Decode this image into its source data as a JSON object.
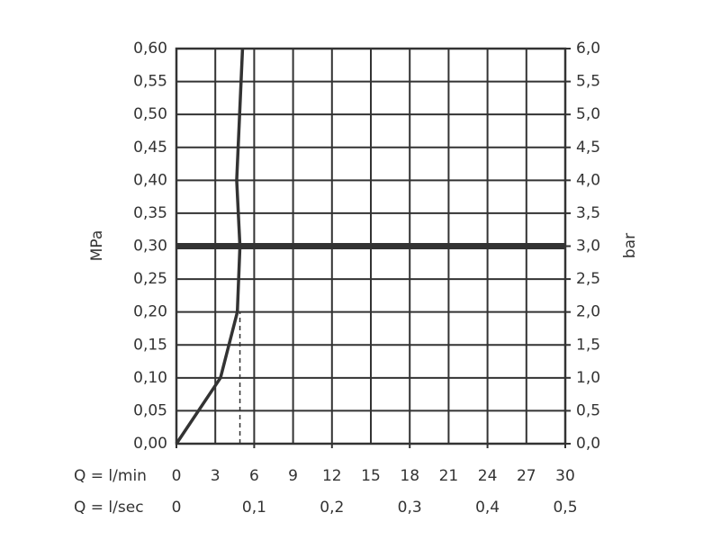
{
  "chart_data": {
    "type": "line",
    "x": [
      0,
      3.4,
      4.7,
      4.9,
      4.65,
      5.1
    ],
    "series": [
      {
        "color": "#333333",
        "values": [
          0,
          0.1,
          0.2,
          0.3,
          0.4,
          0.6
        ]
      }
    ],
    "xlim": [
      0,
      30
    ],
    "xticks": [
      0,
      3,
      6,
      9,
      12,
      15,
      18,
      21,
      24,
      27,
      30
    ],
    "x2lim": [
      0,
      0.5
    ],
    "x2ticks": [
      0,
      {
        "value": 0.1,
        "label": "0,1"
      },
      {
        "value": 0.2,
        "label": "0,2"
      },
      {
        "value": 0.3,
        "label": "0,3"
      },
      {
        "value": 0.4,
        "label": "0,4"
      },
      {
        "value": 0.5,
        "label": "0,5"
      }
    ],
    "ylim": [
      0,
      0.6
    ],
    "yticks": [
      {
        "value": 0,
        "label": "0,00"
      },
      {
        "value": 0.05,
        "label": "0,05"
      },
      {
        "value": 0.1,
        "label": "0,10"
      },
      {
        "value": 0.15,
        "label": "0,15"
      },
      {
        "value": 0.2,
        "label": "0,20"
      },
      {
        "value": 0.25,
        "label": "0,25"
      },
      {
        "value": 0.3,
        "label": "0,30"
      },
      {
        "value": 0.35,
        "label": "0,35"
      },
      {
        "value": 0.4,
        "label": "0,40"
      },
      {
        "value": 0.45,
        "label": "0,45"
      },
      {
        "value": 0.5,
        "label": "0,50"
      },
      {
        "value": 0.55,
        "label": "0,55"
      },
      {
        "value": 0.6,
        "label": "0,60"
      }
    ],
    "y2lim": [
      0,
      6
    ],
    "y2ticks": [
      {
        "value": 0,
        "label": "0,0"
      },
      {
        "value": 0.5,
        "label": "0,5"
      },
      {
        "value": 1,
        "label": "1,0"
      },
      {
        "value": 1.5,
        "label": "1,5"
      },
      {
        "value": 2,
        "label": "2,0"
      },
      {
        "value": 2.5,
        "label": "2,5"
      },
      {
        "value": 3,
        "label": "3,0"
      },
      {
        "value": 3.5,
        "label": "3,5"
      },
      {
        "value": 4,
        "label": "4,0"
      },
      {
        "value": 4.5,
        "label": "4,5"
      },
      {
        "value": 5,
        "label": "5,0"
      },
      {
        "value": 5.5,
        "label": "5,5"
      },
      {
        "value": 6,
        "label": "6,0"
      }
    ],
    "ylabel": "MPa",
    "y2label": "bar",
    "xlabel": "Q = l/min",
    "x2label": "Q = l/sec",
    "reference_line": {
      "y": 0.3
    },
    "dashed_line": {
      "x": 4.9,
      "y": [
        0,
        0.2
      ]
    },
    "grid": true
  }
}
